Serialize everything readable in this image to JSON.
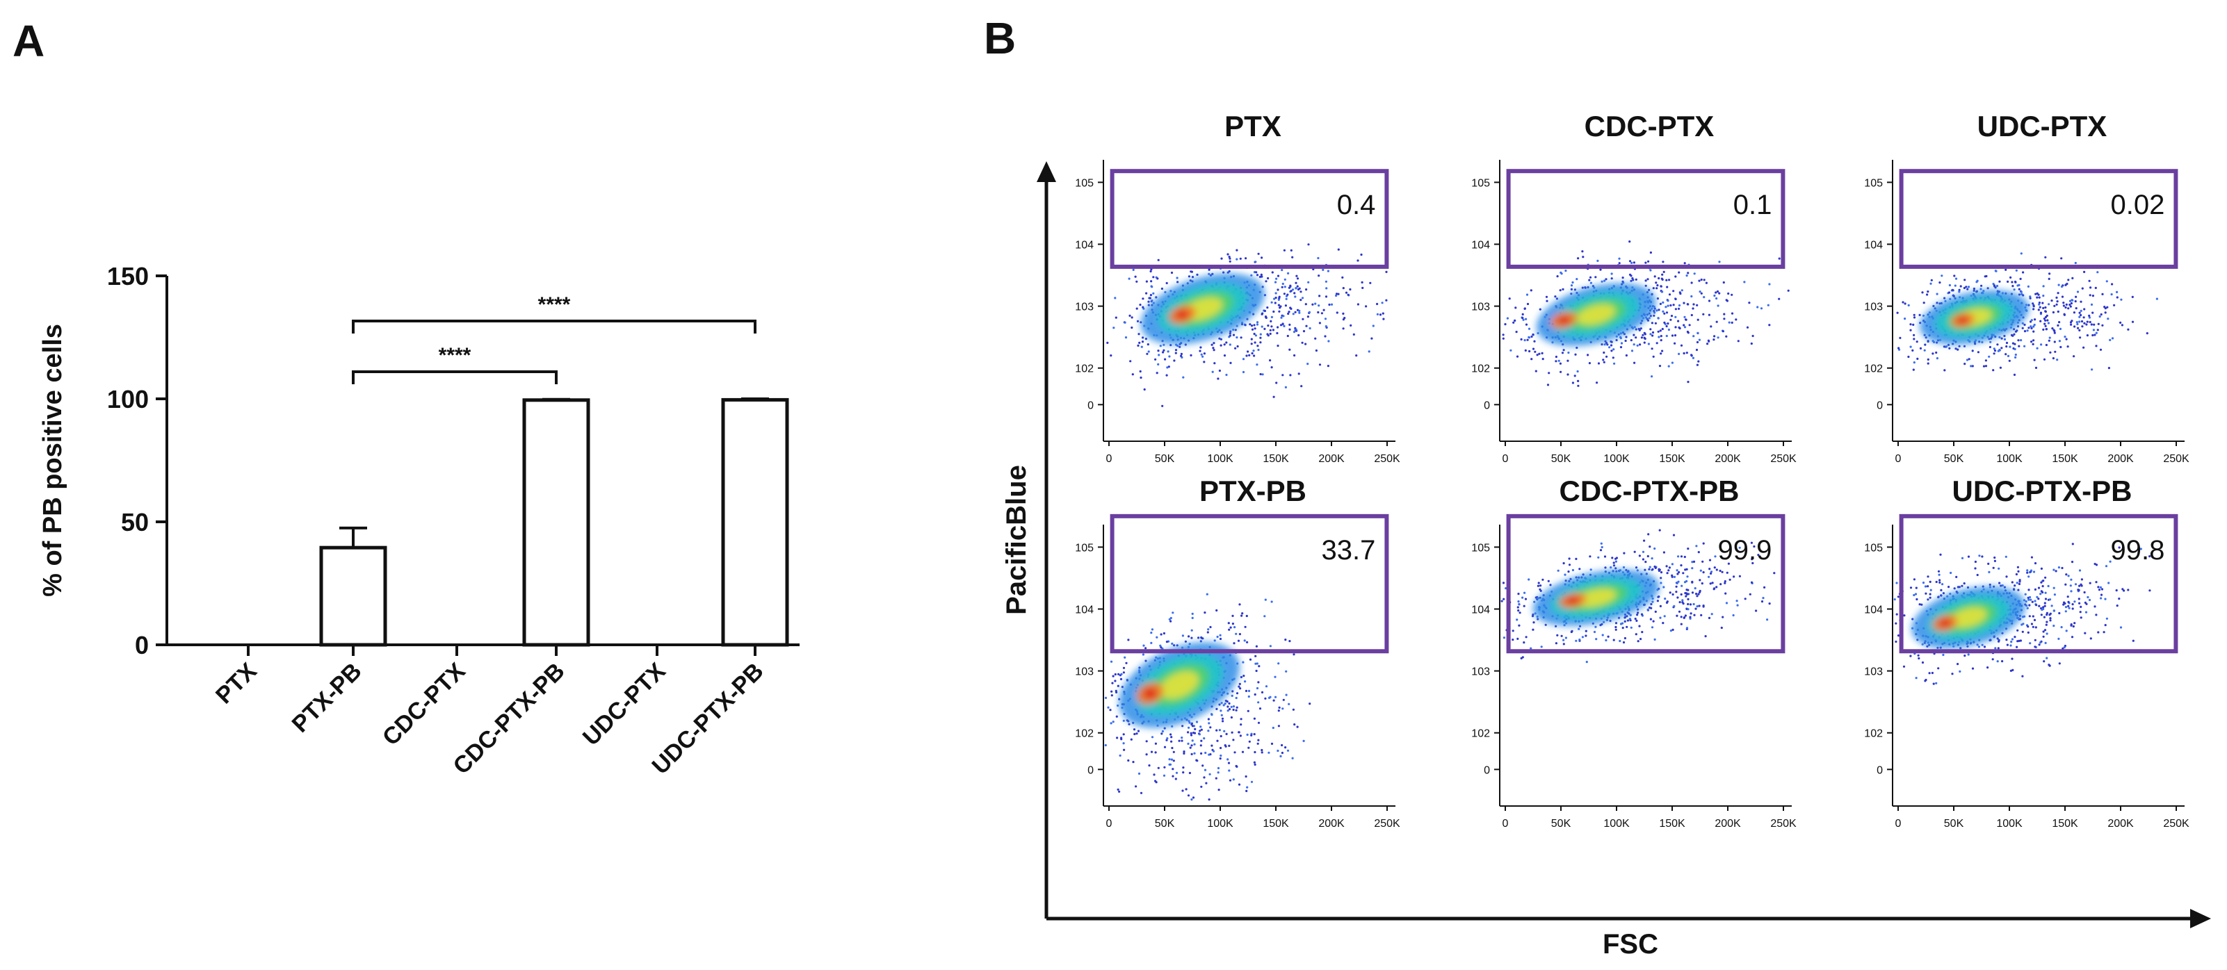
{
  "panels": {
    "a_label": "A",
    "b_label": "B"
  },
  "colors": {
    "gate": "#6a3fa0",
    "axis": "#111111"
  },
  "chart_data": [
    {
      "type": "bar",
      "panel": "A",
      "ylabel": "% of PB positive cells",
      "ylim": [
        0,
        150
      ],
      "yticks": [
        0,
        50,
        100,
        150
      ],
      "categories": [
        "PTX",
        "PTX-PB",
        "CDC-PTX",
        "CDC-PTX-PB",
        "UDC-PTX",
        "UDC-PTX-PB"
      ],
      "values": [
        0,
        39.5,
        0,
        99.5,
        0,
        99.6
      ],
      "errors": [
        0,
        8,
        0,
        0.3,
        0,
        0.4
      ],
      "significance": [
        {
          "from": "PTX-PB",
          "to": "CDC-PTX-PB",
          "label": "****"
        },
        {
          "from": "PTX-PB",
          "to": "UDC-PTX-PB",
          "label": "****"
        }
      ]
    },
    {
      "type": "scatter",
      "panel": "B",
      "xlabel": "FSC",
      "ylabel": "PacificBlue",
      "x_ticks": [
        "0",
        "50K",
        "100K",
        "150K",
        "200K",
        "250K"
      ],
      "plots": [
        {
          "title": "PTX",
          "gate_percent": "0.4",
          "y_ticks": [
            "105",
            "104",
            "103",
            "102",
            "0"
          ]
        },
        {
          "title": "CDC-PTX",
          "gate_percent": "0.1",
          "y_ticks": [
            "105",
            "104",
            "103",
            "102",
            "0"
          ]
        },
        {
          "title": "UDC-PTX",
          "gate_percent": "0.02",
          "y_ticks": [
            "105",
            "104",
            "103",
            "102",
            "0"
          ]
        },
        {
          "title": "PTX-PB",
          "gate_percent": "33.7",
          "y_ticks": [
            "105",
            "104",
            "103",
            "102",
            "0"
          ]
        },
        {
          "title": "CDC-PTX-PB",
          "gate_percent": "99.9",
          "y_ticks": [
            "105",
            "104",
            "103",
            "102",
            "0"
          ]
        },
        {
          "title": "UDC-PTX-PB",
          "gate_percent": "99.8",
          "y_ticks": [
            "105",
            "104",
            "103",
            "102",
            "0"
          ]
        }
      ]
    }
  ]
}
